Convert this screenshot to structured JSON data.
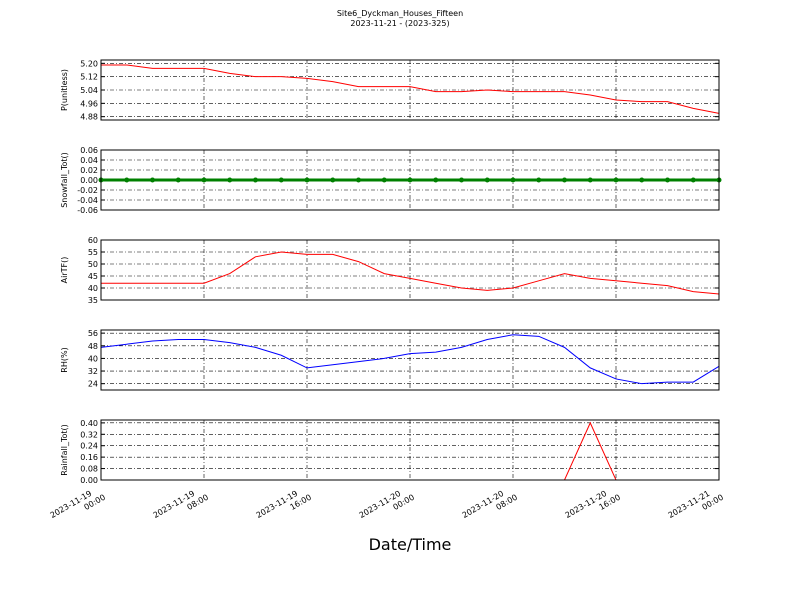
{
  "title": "Site6_Dyckman_Houses_Fifteen",
  "subtitle": "2023-11-21 - (2023-325)",
  "x_axis": {
    "xlabel": "Date/Time",
    "xlim": [
      "2023-11-19 00:00",
      "2023-11-21 00:00"
    ],
    "xticks": [
      "2023-11-19 00:00",
      "2023-11-19 08:00",
      "2023-11-19 16:00",
      "2023-11-20 00:00",
      "2023-11-20 08:00",
      "2023-11-20 16:00",
      "2023-11-21 00:00"
    ],
    "x": [
      "2023-11-19 00:00",
      "2023-11-19 02:00",
      "2023-11-19 04:00",
      "2023-11-19 06:00",
      "2023-11-19 08:00",
      "2023-11-19 10:00",
      "2023-11-19 12:00",
      "2023-11-19 14:00",
      "2023-11-19 16:00",
      "2023-11-19 18:00",
      "2023-11-19 20:00",
      "2023-11-19 22:00",
      "2023-11-20 00:00",
      "2023-11-20 02:00",
      "2023-11-20 04:00",
      "2023-11-20 06:00",
      "2023-11-20 08:00",
      "2023-11-20 10:00",
      "2023-11-20 12:00",
      "2023-11-20 14:00",
      "2023-11-20 16:00",
      "2023-11-20 18:00",
      "2023-11-20 20:00",
      "2023-11-20 22:00",
      "2023-11-21 00:00"
    ]
  },
  "chart_data": [
    {
      "type": "line",
      "ylabel": "P(unitless)",
      "color": "#ff0000",
      "values": [
        5.19,
        5.19,
        5.17,
        5.17,
        5.17,
        5.14,
        5.12,
        5.12,
        5.11,
        5.09,
        5.06,
        5.06,
        5.06,
        5.03,
        5.03,
        5.04,
        5.03,
        5.03,
        5.03,
        5.01,
        4.98,
        4.97,
        4.97,
        4.93,
        4.9
      ],
      "ylim": [
        4.86,
        5.22
      ],
      "yticks": [
        4.88,
        4.96,
        5.04,
        5.12,
        {
          "value": 5.2,
          "label": "5.20"
        }
      ],
      "grid": true
    },
    {
      "type": "line",
      "ylabel": "Snowfall_Tot()",
      "color": "#008000",
      "markers": true,
      "values": [
        0,
        0,
        0,
        0,
        0,
        0,
        0,
        0,
        0,
        0,
        0,
        0,
        0,
        0,
        0,
        0,
        0,
        0,
        0,
        0,
        0,
        0,
        0,
        0,
        0
      ],
      "ylim": [
        -0.06,
        0.06
      ],
      "yticks": [
        -0.06,
        -0.04,
        -0.02,
        {
          "value": 0,
          "label": "0.00"
        },
        0.02,
        0.04,
        0.06
      ],
      "grid": true
    },
    {
      "type": "line",
      "ylabel": "AirTF()",
      "color": "#ff0000",
      "values": [
        42,
        42,
        42,
        42,
        42,
        46,
        53,
        55,
        54,
        54,
        51,
        46,
        44,
        42,
        40,
        39,
        40,
        43,
        46,
        44,
        43,
        42,
        41,
        38.5,
        37.5
      ],
      "ylim": [
        35,
        60
      ],
      "yticks": [
        35,
        40,
        45,
        50,
        55,
        60
      ],
      "grid": true
    },
    {
      "type": "line",
      "ylabel": "RH(%)",
      "color": "#0000ff",
      "values": [
        47,
        49,
        51,
        52,
        52,
        50,
        47,
        42,
        34,
        36,
        38,
        40,
        43,
        44,
        47,
        52,
        55,
        54,
        47,
        34,
        27,
        24,
        25,
        25,
        35
      ],
      "ylim": [
        20,
        58
      ],
      "yticks": [
        24,
        32,
        40,
        48,
        56
      ],
      "grid": true
    },
    {
      "type": "line",
      "ylabel": "Rainfall_Tot()",
      "color": "#ff0000",
      "values": [
        0,
        0,
        0,
        0,
        0,
        0,
        0,
        0,
        0,
        0,
        0,
        0,
        0,
        0,
        0,
        0,
        0,
        0,
        0,
        0.4,
        0,
        0,
        0,
        0,
        0
      ],
      "ylim": [
        0,
        0.42
      ],
      "yticks": [
        {
          "value": 0,
          "label": "0.00"
        },
        0.08,
        0.16,
        0.24,
        0.32,
        {
          "value": 0.4,
          "label": "0.40"
        }
      ],
      "grid": true
    }
  ]
}
